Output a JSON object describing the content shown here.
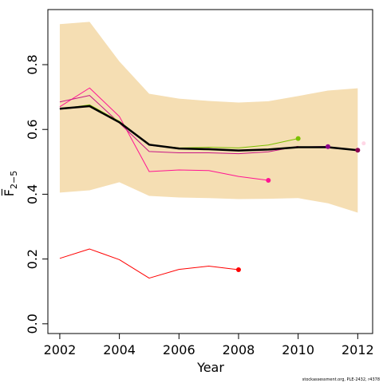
{
  "chart_data": {
    "type": "line",
    "title": "",
    "xlabel": "Year",
    "ylabel": "F̅",
    "ylabel_subscript": "2−5",
    "xlim": [
      2001.6,
      2012.5
    ],
    "ylim": [
      -0.03,
      0.97
    ],
    "x_ticks": [
      2002,
      2004,
      2006,
      2008,
      2010,
      2012
    ],
    "y_ticks": [
      0.0,
      0.2,
      0.4,
      0.6,
      0.8
    ],
    "y_tick_labels": [
      "0.0",
      "0.2",
      "0.4",
      "0.6",
      "0.8"
    ],
    "grid": false,
    "band": {
      "color": "#f5deb3",
      "x": [
        2002,
        2003,
        2004,
        2005,
        2006,
        2007,
        2008,
        2009,
        2010,
        2011,
        2012
      ],
      "upper": [
        0.925,
        0.932,
        0.81,
        0.71,
        0.695,
        0.688,
        0.683,
        0.687,
        0.703,
        0.72,
        0.727
      ],
      "lower": [
        0.405,
        0.412,
        0.437,
        0.395,
        0.39,
        0.388,
        0.385,
        0.386,
        0.388,
        0.372,
        0.343
      ]
    },
    "series": [
      {
        "color": "#ff0000",
        "width": 1,
        "x": [
          2002,
          2003,
          2004,
          2005,
          2006,
          2007,
          2008
        ],
        "values": [
          0.202,
          0.231,
          0.198,
          0.141,
          0.168,
          0.178,
          0.167
        ],
        "end_point": true
      },
      {
        "color": "#ff1493",
        "width": 1,
        "x": [
          2002,
          2003,
          2004,
          2005,
          2006,
          2007,
          2008,
          2009
        ],
        "values": [
          0.67,
          0.728,
          0.64,
          0.47,
          0.475,
          0.473,
          0.455,
          0.443
        ],
        "end_point": true
      },
      {
        "color": "#c71585",
        "width": 1,
        "x": [
          2002,
          2003,
          2004,
          2005,
          2006,
          2007,
          2008,
          2009,
          2010
        ],
        "values": [
          0.685,
          0.705,
          0.62,
          0.532,
          0.528,
          0.528,
          0.525,
          0.531,
          0.548
        ],
        "end_point": false
      },
      {
        "color": "#7cc000",
        "width": 1,
        "x": [
          2002,
          2003,
          2004,
          2005,
          2006,
          2007,
          2008,
          2009,
          2010
        ],
        "values": [
          0.663,
          0.676,
          0.625,
          0.553,
          0.543,
          0.545,
          0.543,
          0.552,
          0.572
        ],
        "end_point": true
      },
      {
        "color": "#8b008b",
        "width": 1.5,
        "x": [
          2002,
          2003,
          2004,
          2005,
          2006,
          2007,
          2008,
          2009,
          2010,
          2011
        ],
        "values": [
          0.663,
          0.672,
          0.622,
          0.552,
          0.541,
          0.54,
          0.535,
          0.537,
          0.545,
          0.547
        ],
        "end_point": true
      },
      {
        "color": "#000000",
        "width": 2.5,
        "x": [
          2002,
          2003,
          2004,
          2005,
          2006,
          2007,
          2008,
          2009,
          2010,
          2011,
          2012
        ],
        "values": [
          0.664,
          0.672,
          0.622,
          0.553,
          0.541,
          0.539,
          0.535,
          0.538,
          0.545,
          0.545,
          0.536
        ],
        "end_point": false
      },
      {
        "color": "#8b0050",
        "width": 1,
        "x": [
          2012
        ],
        "values": [
          0.536
        ],
        "end_point": true
      }
    ],
    "extra_points": [
      {
        "x": 2012.2,
        "y": 0.557,
        "color": "#ffd7e6"
      }
    ],
    "credit": "stockassessment.org, PLE-2432, r4378"
  }
}
